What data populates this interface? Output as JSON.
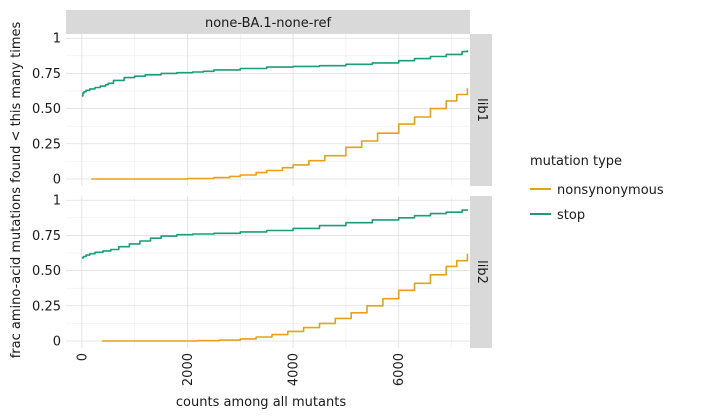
{
  "chart_data": {
    "type": "line",
    "title": "",
    "xlabel": "counts among all mutants",
    "ylabel": "frac amino-acid mutations found < this many times",
    "xlim": [
      -300,
      7350
    ],
    "ylim": [
      -0.05,
      1.03
    ],
    "x_ticks": [
      "0",
      "2000",
      "4000",
      "6000"
    ],
    "x_tick_values": [
      0,
      2000,
      4000,
      6000
    ],
    "y_ticks": [
      "0",
      "0.25",
      "0.50",
      "0.75",
      "1"
    ],
    "y_tick_values": [
      0,
      0.25,
      0.5,
      0.75,
      1
    ],
    "column_strip": "none-BA.1-none-ref",
    "grid": true,
    "legend_placement": "right",
    "legend_title": "mutation type",
    "series_colors": {
      "nonsynonymous": "#E6A117",
      "stop": "#1B9E77"
    },
    "panels": [
      {
        "label": "lib1",
        "series": [
          {
            "name": "nonsynonymous",
            "x": [
              180,
              500,
              1000,
              1500,
              2000,
              2500,
              2800,
              3000,
              3300,
              3500,
              3800,
              4000,
              4300,
              4600,
              5000,
              5300,
              5600,
              6000,
              6300,
              6600,
              6900,
              7100,
              7300
            ],
            "y": [
              0.0,
              0.0,
              0.0,
              0.0,
              0.003,
              0.01,
              0.018,
              0.028,
              0.045,
              0.06,
              0.08,
              0.1,
              0.13,
              0.165,
              0.225,
              0.27,
              0.325,
              0.39,
              0.44,
              0.5,
              0.555,
              0.6,
              0.645
            ]
          },
          {
            "name": "stop",
            "x": [
              0,
              20,
              40,
              80,
              150,
              250,
              350,
              450,
              500,
              600,
              800,
              1000,
              1200,
              1500,
              1800,
              2100,
              2300,
              2500,
              3000,
              3500,
              4000,
              4500,
              5000,
              5500,
              6000,
              6300,
              6600,
              6900,
              7200,
              7300
            ],
            "y": [
              0.59,
              0.61,
              0.62,
              0.63,
              0.64,
              0.65,
              0.66,
              0.67,
              0.68,
              0.7,
              0.72,
              0.73,
              0.74,
              0.75,
              0.755,
              0.76,
              0.765,
              0.775,
              0.785,
              0.795,
              0.8,
              0.805,
              0.815,
              0.825,
              0.84,
              0.855,
              0.87,
              0.885,
              0.905,
              0.915
            ]
          }
        ]
      },
      {
        "label": "lib2",
        "series": [
          {
            "name": "nonsynonymous",
            "x": [
              380,
              800,
              1500,
              2200,
              2600,
              3000,
              3300,
              3600,
              3900,
              4200,
              4500,
              4800,
              5100,
              5400,
              5700,
              6000,
              6300,
              6600,
              6900,
              7100,
              7300
            ],
            "y": [
              0.0,
              0.0,
              0.0,
              0.002,
              0.006,
              0.015,
              0.028,
              0.045,
              0.068,
              0.095,
              0.125,
              0.16,
              0.2,
              0.25,
              0.3,
              0.36,
              0.41,
              0.47,
              0.53,
              0.57,
              0.62
            ]
          },
          {
            "name": "stop",
            "x": [
              0,
              30,
              80,
              150,
              250,
              400,
              550,
              700,
              900,
              1100,
              1300,
              1500,
              1800,
              2100,
              2500,
              3000,
              3500,
              4000,
              4500,
              5000,
              5500,
              6000,
              6300,
              6600,
              6900,
              7200,
              7300
            ],
            "y": [
              0.59,
              0.6,
              0.61,
              0.62,
              0.63,
              0.64,
              0.65,
              0.67,
              0.69,
              0.71,
              0.73,
              0.745,
              0.755,
              0.76,
              0.765,
              0.775,
              0.785,
              0.8,
              0.82,
              0.84,
              0.86,
              0.875,
              0.89,
              0.905,
              0.915,
              0.93,
              0.935
            ]
          }
        ]
      }
    ]
  }
}
